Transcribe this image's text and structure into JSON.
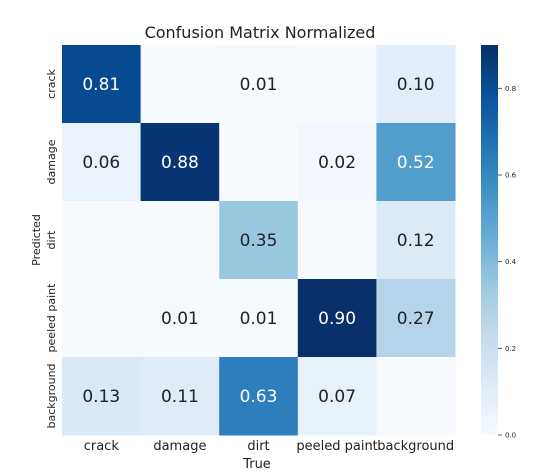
{
  "chart_data": {
    "type": "heatmap",
    "title": "Confusion Matrix Normalized",
    "xlabel": "True",
    "ylabel": "Predicted",
    "x_categories": [
      "crack",
      "damage",
      "dirt",
      "peeled paint",
      "background"
    ],
    "y_categories": [
      "crack",
      "damage",
      "dirt",
      "peeled paint",
      "background"
    ],
    "values": [
      [
        "0.81",
        "",
        "0.01",
        "",
        "0.10"
      ],
      [
        "0.06",
        "0.88",
        "",
        "0.02",
        "0.52"
      ],
      [
        "",
        "",
        "0.35",
        "",
        "0.12"
      ],
      [
        "",
        "0.01",
        "0.01",
        "0.90",
        "0.27"
      ],
      [
        "0.13",
        "0.11",
        "0.63",
        "0.07",
        ""
      ]
    ],
    "colorbar": {
      "range": [
        0,
        0.9
      ],
      "ticks": [
        "0.0",
        "0.2",
        "0.4",
        "0.6",
        "0.8"
      ],
      "colormap": "Blues"
    },
    "colors": {
      "low": "#f7fbff",
      "high": "#08306b"
    }
  }
}
